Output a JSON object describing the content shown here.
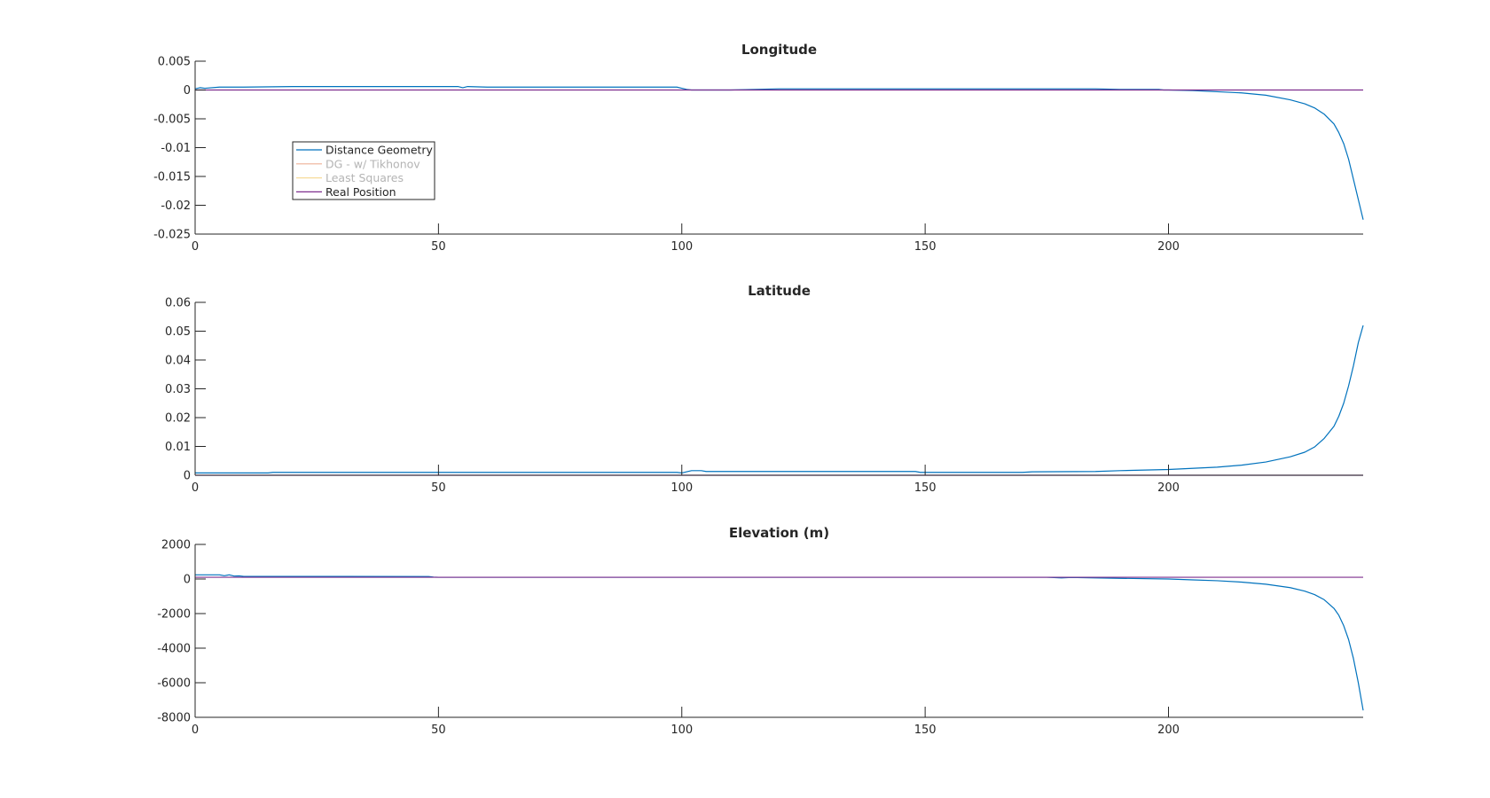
{
  "colors": {
    "distance_geometry": "#0072bd",
    "dg_tikhonov": "#d95319",
    "least_squares": "#edb120",
    "real_position": "#7e2f8e",
    "axis": "#262626",
    "legend_faded_text": "#b4b4b4"
  },
  "legend": {
    "placement": "inside-upper-left of first subplot",
    "entries": [
      {
        "name": "Distance Geometry",
        "color_key": "distance_geometry",
        "faded": false
      },
      {
        "name": "DG - w/ Tikhonov",
        "color_key": "dg_tikhonov",
        "faded": true
      },
      {
        "name": "Least Squares",
        "color_key": "least_squares",
        "faded": true
      },
      {
        "name": "Real Position",
        "color_key": "real_position",
        "faded": false
      }
    ]
  },
  "chart_data": [
    {
      "type": "line",
      "title": "Longitude",
      "xlim": [
        0,
        240
      ],
      "ylim": [
        -0.025,
        0.005
      ],
      "xticks": [
        0,
        50,
        100,
        150,
        200
      ],
      "yticks": [
        0.005,
        0,
        -0.005,
        -0.01,
        -0.015,
        -0.02,
        -0.025
      ],
      "ytick_labels": [
        "0.005",
        "0",
        "-0.005",
        "-0.01",
        "-0.015",
        "-0.02",
        "-0.025"
      ],
      "grid": false,
      "series": [
        {
          "name": "Distance Geometry",
          "color_key": "distance_geometry",
          "x": [
            0,
            1,
            2,
            5,
            10,
            20,
            40,
            54,
            55,
            56,
            60,
            80,
            99,
            100,
            101,
            102,
            110,
            120,
            150,
            185,
            190,
            198,
            199,
            200,
            205,
            210,
            215,
            220,
            225,
            228,
            230,
            232,
            234,
            235,
            236,
            237,
            238,
            239,
            240
          ],
          "y": [
            0.0002,
            0.0004,
            0.0003,
            0.0005,
            0.0005,
            0.0006,
            0.0006,
            0.0006,
            0.0004,
            0.0006,
            0.0005,
            0.0005,
            0.0005,
            0.0003,
            0.0001,
            0.0,
            0.0,
            0.0002,
            0.0002,
            0.0002,
            0.0001,
            0.0001,
            0.0,
            0.0,
            -0.0001,
            -0.0003,
            -0.0005,
            -0.0009,
            -0.0017,
            -0.0024,
            -0.0031,
            -0.0042,
            -0.0059,
            -0.0074,
            -0.0093,
            -0.012,
            -0.0155,
            -0.019,
            -0.0225
          ]
        },
        {
          "name": "Real Position",
          "color_key": "real_position",
          "x": [
            0,
            240
          ],
          "y": [
            0,
            0
          ]
        }
      ]
    },
    {
      "type": "line",
      "title": "Latitude",
      "xlim": [
        0,
        240
      ],
      "ylim": [
        0,
        0.06
      ],
      "xticks": [
        0,
        50,
        100,
        150,
        200
      ],
      "yticks": [
        0.06,
        0.05,
        0.04,
        0.03,
        0.02,
        0.01,
        0
      ],
      "ytick_labels": [
        "0.06",
        "0.05",
        "0.04",
        "0.03",
        "0.02",
        "0.01",
        "0"
      ],
      "grid": false,
      "series": [
        {
          "name": "Distance Geometry",
          "color_key": "distance_geometry",
          "x": [
            0,
            15,
            16,
            50,
            99,
            100,
            101,
            102,
            104,
            105,
            110,
            148,
            149,
            150,
            170,
            172,
            185,
            190,
            200,
            210,
            215,
            220,
            225,
            228,
            230,
            232,
            234,
            235,
            236,
            237,
            238,
            239,
            240
          ],
          "y": [
            0.0008,
            0.0008,
            0.001,
            0.001,
            0.001,
            0.0008,
            0.0012,
            0.0016,
            0.0016,
            0.0013,
            0.0013,
            0.0013,
            0.001,
            0.001,
            0.001,
            0.0012,
            0.0013,
            0.0016,
            0.002,
            0.0028,
            0.0035,
            0.0046,
            0.0064,
            0.008,
            0.0098,
            0.0128,
            0.017,
            0.0205,
            0.025,
            0.031,
            0.038,
            0.046,
            0.052
          ]
        },
        {
          "name": "Real Position",
          "color_key": "real_position",
          "x": [
            0,
            240
          ],
          "y": [
            0,
            0
          ]
        }
      ]
    },
    {
      "type": "line",
      "title": "Elevation (m)",
      "xlim": [
        0,
        240
      ],
      "ylim": [
        -8000,
        2000
      ],
      "xticks": [
        0,
        50,
        100,
        150,
        200
      ],
      "yticks": [
        2000,
        0,
        -2000,
        -4000,
        -6000,
        -8000
      ],
      "ytick_labels": [
        "2000",
        "0",
        "-2000",
        "-4000",
        "-6000",
        "-8000"
      ],
      "grid": false,
      "series": [
        {
          "name": "Distance Geometry",
          "color_key": "distance_geometry",
          "x": [
            0,
            5,
            6,
            7,
            8,
            9,
            10,
            30,
            48,
            49,
            50,
            100,
            175,
            178,
            180,
            190,
            200,
            205,
            210,
            215,
            220,
            225,
            228,
            230,
            232,
            234,
            235,
            236,
            237,
            238,
            239,
            240
          ],
          "y": [
            240,
            240,
            190,
            240,
            170,
            180,
            150,
            150,
            140,
            110,
            100,
            100,
            100,
            60,
            90,
            40,
            0,
            -50,
            -100,
            -180,
            -300,
            -500,
            -700,
            -900,
            -1200,
            -1700,
            -2100,
            -2700,
            -3500,
            -4600,
            -6000,
            -7600
          ]
        },
        {
          "name": "Real Position",
          "color_key": "real_position",
          "x": [
            0,
            240
          ],
          "y": [
            100,
            100
          ]
        }
      ]
    }
  ]
}
